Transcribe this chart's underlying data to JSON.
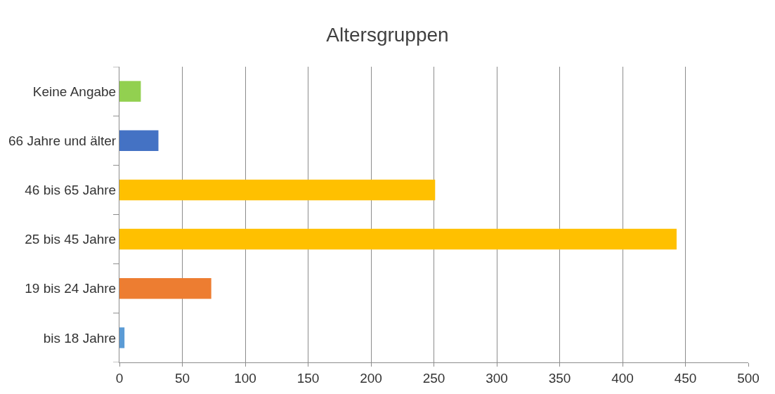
{
  "chart_data": {
    "type": "bar",
    "orientation": "horizontal",
    "title": "Altersgruppen",
    "categories": [
      "Keine Angabe",
      "66 Jahre und älter",
      "46 bis 65 Jahre",
      "25 bis 45 Jahre",
      "19 bis 24 Jahre",
      "bis 18 Jahre"
    ],
    "values": [
      17,
      31,
      251,
      443,
      73,
      4
    ],
    "colors": [
      "#92d050",
      "#4472c4",
      "#ffc000",
      "#ffc000",
      "#ed7d31",
      "#5b9bd5"
    ],
    "xlim": [
      0,
      500
    ],
    "xticks": [
      0,
      50,
      100,
      150,
      200,
      250,
      300,
      350,
      400,
      450,
      500
    ],
    "grid": "x",
    "legend": false
  }
}
